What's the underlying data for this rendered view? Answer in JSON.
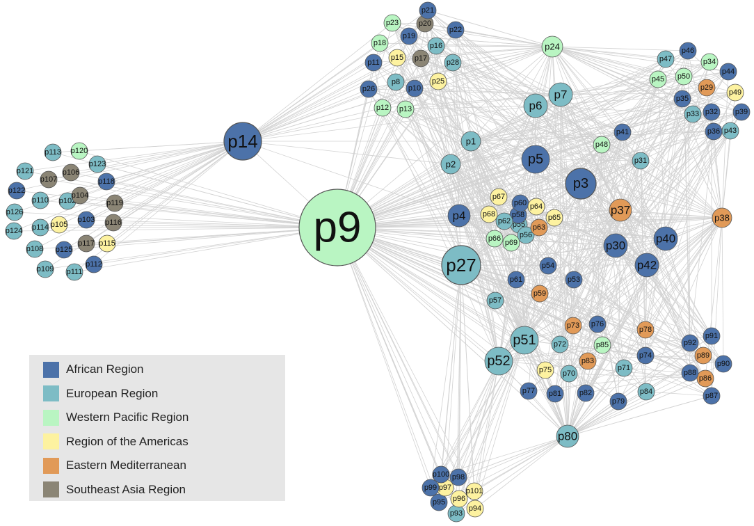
{
  "colors": {
    "african": "#4c72a9",
    "european": "#7dbcc5",
    "western_pacific": "#b9f5c2",
    "americas": "#fdf2a0",
    "eastern_med": "#e19a58",
    "southeast_asia": "#8b8575",
    "edge": "#d2d2d2",
    "node_stroke": "#555555"
  },
  "legend": [
    {
      "region": "african",
      "label": "African Region"
    },
    {
      "region": "european",
      "label": "European Region"
    },
    {
      "region": "western_pacific",
      "label": "Western Pacific Region"
    },
    {
      "region": "americas",
      "label": "Region of the Americas"
    },
    {
      "region": "eastern_med",
      "label": "Eastern Mediterranean"
    },
    {
      "region": "southeast_asia",
      "label": "Southeast Asia Region"
    }
  ],
  "nodes": [
    {
      "id": "p1",
      "region": "european"
    },
    {
      "id": "p2",
      "region": "european"
    },
    {
      "id": "p3",
      "region": "african"
    },
    {
      "id": "p4",
      "region": "african"
    },
    {
      "id": "p5",
      "region": "african"
    },
    {
      "id": "p6",
      "region": "european"
    },
    {
      "id": "p7",
      "region": "european"
    },
    {
      "id": "p8",
      "region": "european"
    },
    {
      "id": "p9",
      "region": "western_pacific"
    },
    {
      "id": "p10",
      "region": "african"
    },
    {
      "id": "p11",
      "region": "african"
    },
    {
      "id": "p12",
      "region": "western_pacific"
    },
    {
      "id": "p13",
      "region": "western_pacific"
    },
    {
      "id": "p14",
      "region": "african"
    },
    {
      "id": "p15",
      "region": "americas"
    },
    {
      "id": "p16",
      "region": "european"
    },
    {
      "id": "p17",
      "region": "southeast_asia"
    },
    {
      "id": "p18",
      "region": "western_pacific"
    },
    {
      "id": "p19",
      "region": "african"
    },
    {
      "id": "p20",
      "region": "southeast_asia"
    },
    {
      "id": "p21",
      "region": "african"
    },
    {
      "id": "p22",
      "region": "african"
    },
    {
      "id": "p23",
      "region": "western_pacific"
    },
    {
      "id": "p24",
      "region": "western_pacific"
    },
    {
      "id": "p25",
      "region": "americas"
    },
    {
      "id": "p26",
      "region": "african"
    },
    {
      "id": "p27",
      "region": "european"
    },
    {
      "id": "p28",
      "region": "european"
    },
    {
      "id": "p29",
      "region": "eastern_med"
    },
    {
      "id": "p30",
      "region": "african"
    },
    {
      "id": "p31",
      "region": "european"
    },
    {
      "id": "p32",
      "region": "african"
    },
    {
      "id": "p33",
      "region": "european"
    },
    {
      "id": "p34",
      "region": "western_pacific"
    },
    {
      "id": "p35",
      "region": "african"
    },
    {
      "id": "p36",
      "region": "african"
    },
    {
      "id": "p37",
      "region": "eastern_med"
    },
    {
      "id": "p38",
      "region": "eastern_med"
    },
    {
      "id": "p39",
      "region": "african"
    },
    {
      "id": "p40",
      "region": "african"
    },
    {
      "id": "p41",
      "region": "african"
    },
    {
      "id": "p42",
      "region": "african"
    },
    {
      "id": "p43",
      "region": "european"
    },
    {
      "id": "p44",
      "region": "african"
    },
    {
      "id": "p45",
      "region": "western_pacific"
    },
    {
      "id": "p46",
      "region": "african"
    },
    {
      "id": "p47",
      "region": "european"
    },
    {
      "id": "p48",
      "region": "western_pacific"
    },
    {
      "id": "p49",
      "region": "americas"
    },
    {
      "id": "p50",
      "region": "western_pacific"
    },
    {
      "id": "p51",
      "region": "european"
    },
    {
      "id": "p52",
      "region": "european"
    },
    {
      "id": "p53",
      "region": "african"
    },
    {
      "id": "p54",
      "region": "african"
    },
    {
      "id": "p55",
      "region": "european"
    },
    {
      "id": "p56",
      "region": "european"
    },
    {
      "id": "p57",
      "region": "european"
    },
    {
      "id": "p58",
      "region": "african"
    },
    {
      "id": "p59",
      "region": "eastern_med"
    },
    {
      "id": "p60",
      "region": "african"
    },
    {
      "id": "p61",
      "region": "african"
    },
    {
      "id": "p62",
      "region": "european"
    },
    {
      "id": "p63",
      "region": "eastern_med"
    },
    {
      "id": "p64",
      "region": "americas"
    },
    {
      "id": "p65",
      "region": "americas"
    },
    {
      "id": "p66",
      "region": "western_pacific"
    },
    {
      "id": "p67",
      "region": "americas"
    },
    {
      "id": "p68",
      "region": "americas"
    },
    {
      "id": "p69",
      "region": "western_pacific"
    },
    {
      "id": "p70",
      "region": "european"
    },
    {
      "id": "p71",
      "region": "european"
    },
    {
      "id": "p72",
      "region": "european"
    },
    {
      "id": "p73",
      "region": "eastern_med"
    },
    {
      "id": "p74",
      "region": "african"
    },
    {
      "id": "p75",
      "region": "americas"
    },
    {
      "id": "p76",
      "region": "african"
    },
    {
      "id": "p77",
      "region": "african"
    },
    {
      "id": "p78",
      "region": "eastern_med"
    },
    {
      "id": "p79",
      "region": "african"
    },
    {
      "id": "p80",
      "region": "european"
    },
    {
      "id": "p81",
      "region": "african"
    },
    {
      "id": "p82",
      "region": "african"
    },
    {
      "id": "p83",
      "region": "eastern_med"
    },
    {
      "id": "p84",
      "region": "european"
    },
    {
      "id": "p85",
      "region": "western_pacific"
    },
    {
      "id": "p86",
      "region": "eastern_med"
    },
    {
      "id": "p87",
      "region": "african"
    },
    {
      "id": "p88",
      "region": "african"
    },
    {
      "id": "p89",
      "region": "eastern_med"
    },
    {
      "id": "p90",
      "region": "african"
    },
    {
      "id": "p91",
      "region": "african"
    },
    {
      "id": "p92",
      "region": "african"
    },
    {
      "id": "p93",
      "region": "european"
    },
    {
      "id": "p94",
      "region": "americas"
    },
    {
      "id": "p95",
      "region": "african"
    },
    {
      "id": "p96",
      "region": "americas"
    },
    {
      "id": "p97",
      "region": "americas"
    },
    {
      "id": "p98",
      "region": "african"
    },
    {
      "id": "p99",
      "region": "african"
    },
    {
      "id": "p100",
      "region": "african"
    },
    {
      "id": "p101",
      "region": "americas"
    },
    {
      "id": "p102",
      "region": "european"
    },
    {
      "id": "p103",
      "region": "african"
    },
    {
      "id": "p104",
      "region": "southeast_asia"
    },
    {
      "id": "p105",
      "region": "americas"
    },
    {
      "id": "p106",
      "region": "southeast_asia"
    },
    {
      "id": "p107",
      "region": "southeast_asia"
    },
    {
      "id": "p108",
      "region": "european"
    },
    {
      "id": "p109",
      "region": "european"
    },
    {
      "id": "p110",
      "region": "european"
    },
    {
      "id": "p111",
      "region": "european"
    },
    {
      "id": "p112",
      "region": "african"
    },
    {
      "id": "p113",
      "region": "european"
    },
    {
      "id": "p114",
      "region": "european"
    },
    {
      "id": "p115",
      "region": "americas"
    },
    {
      "id": "p116",
      "region": "southeast_asia"
    },
    {
      "id": "p117",
      "region": "southeast_asia"
    },
    {
      "id": "p118",
      "region": "african"
    },
    {
      "id": "p119",
      "region": "southeast_asia"
    },
    {
      "id": "p120",
      "region": "western_pacific"
    },
    {
      "id": "p121",
      "region": "european"
    },
    {
      "id": "p122",
      "region": "african"
    },
    {
      "id": "p123",
      "region": "european"
    },
    {
      "id": "p124",
      "region": "european"
    },
    {
      "id": "p125",
      "region": "african"
    },
    {
      "id": "p126",
      "region": "european"
    }
  ]
}
